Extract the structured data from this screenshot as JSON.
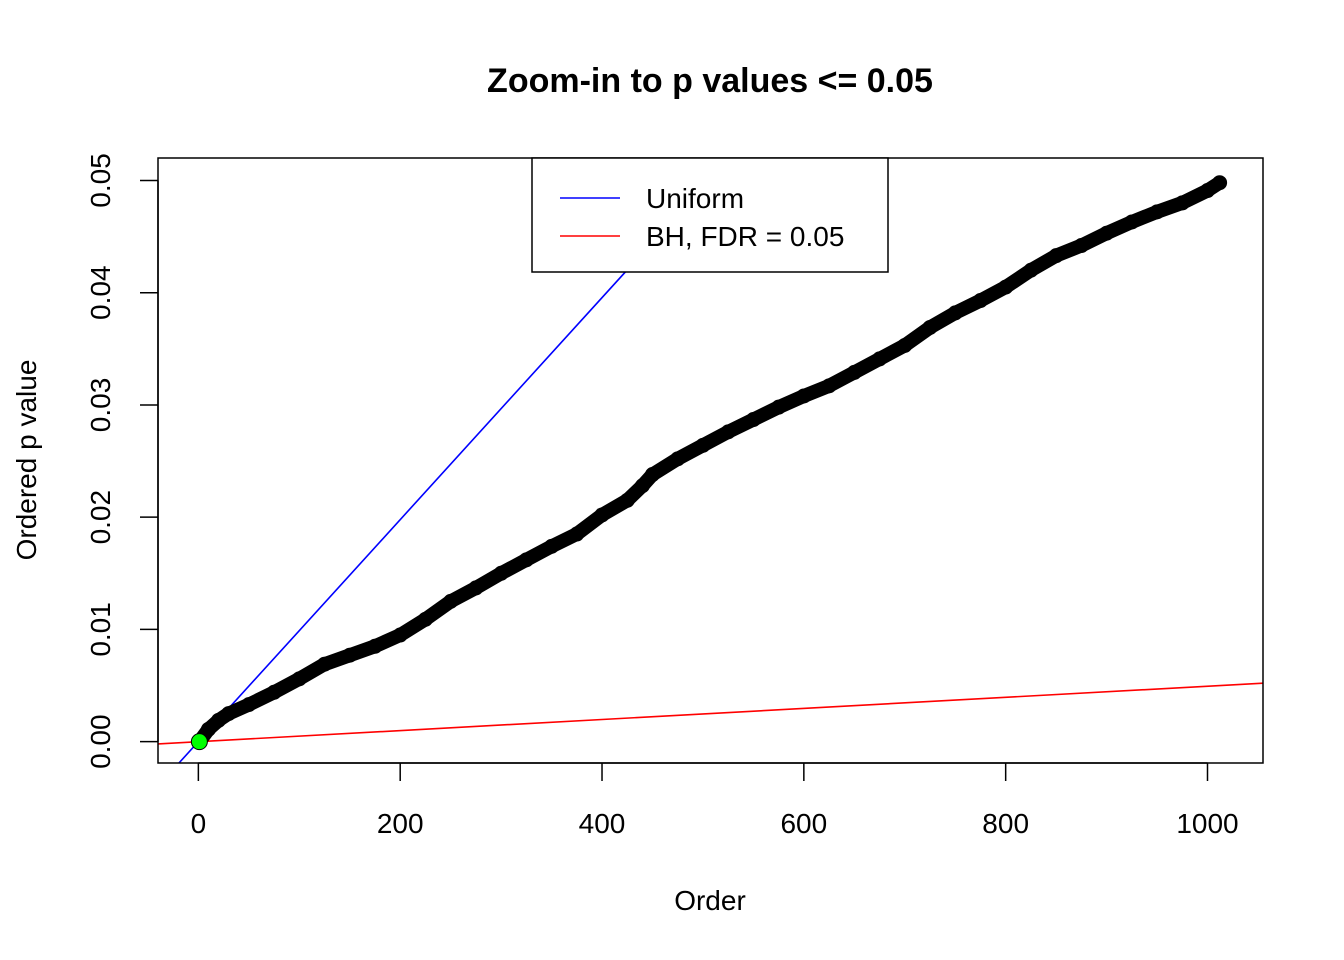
{
  "chart_data": {
    "type": "scatter",
    "title": "Zoom-in to p values <= 0.05",
    "xlabel": "Order",
    "ylabel": "Ordered p value",
    "xlim": [
      -40,
      1055
    ],
    "ylim": [
      -0.0019,
      0.052
    ],
    "x_ticks": [
      0,
      200,
      400,
      600,
      800,
      1000
    ],
    "x_tick_labels": [
      "0",
      "200",
      "400",
      "600",
      "800",
      "1000"
    ],
    "y_ticks": [
      0.0,
      0.01,
      0.02,
      0.03,
      0.04,
      0.05
    ],
    "y_tick_labels": [
      "0.00",
      "0.01",
      "0.02",
      "0.03",
      "0.04",
      "0.05"
    ],
    "grid": false,
    "legend_position": "top-center",
    "legend": [
      {
        "label": "Uniform",
        "color": "#0000ff"
      },
      {
        "label": "BH, FDR = 0.05",
        "color": "#ff0000"
      }
    ],
    "reference_lines": [
      {
        "name": "Uniform",
        "slope": 9.89e-05,
        "intercept": 0.0,
        "color": "#0000ff"
      },
      {
        "name": "BH, FDR = 0.05",
        "slope": 4.94e-06,
        "intercept": 0.0,
        "color": "#ff0000"
      }
    ],
    "highlight_point": {
      "x": 1,
      "y": 0.0,
      "color": "#00ff00"
    },
    "series": [
      {
        "color": "#000000",
        "x": [
          1,
          10,
          20,
          30,
          50,
          75,
          100,
          125,
          150,
          175,
          200,
          225,
          250,
          275,
          300,
          325,
          350,
          375,
          400,
          425,
          440,
          450,
          475,
          500,
          525,
          550,
          575,
          600,
          625,
          650,
          675,
          700,
          725,
          750,
          775,
          800,
          825,
          850,
          875,
          900,
          925,
          950,
          975,
          1000,
          1012
        ],
        "y": [
          0.0,
          0.0011,
          0.0019,
          0.0025,
          0.0033,
          0.0044,
          0.0056,
          0.0069,
          0.0077,
          0.0085,
          0.0095,
          0.0109,
          0.0125,
          0.0137,
          0.015,
          0.0162,
          0.0174,
          0.0185,
          0.0202,
          0.0215,
          0.0228,
          0.0238,
          0.0252,
          0.0264,
          0.0276,
          0.0287,
          0.0298,
          0.0308,
          0.0317,
          0.0329,
          0.0341,
          0.0353,
          0.0369,
          0.0382,
          0.0393,
          0.0405,
          0.042,
          0.0433,
          0.0442,
          0.0453,
          0.0463,
          0.0472,
          0.048,
          0.0491,
          0.0498
        ]
      }
    ]
  }
}
